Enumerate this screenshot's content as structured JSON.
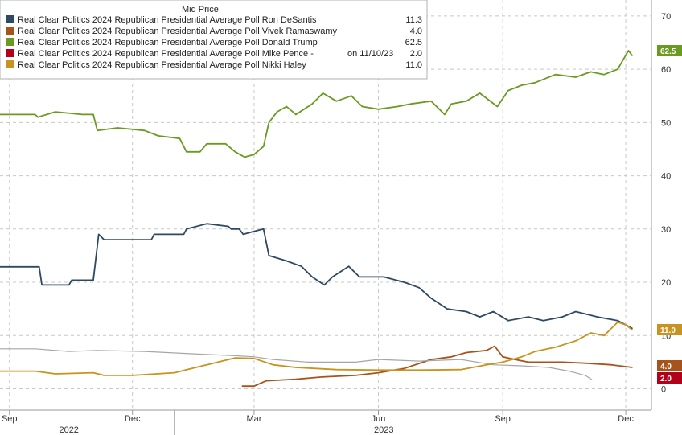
{
  "chart_data": {
    "type": "line",
    "legend_title": "Mid Price",
    "legend_placement": "top-left",
    "grid": true,
    "ylim": [
      -4,
      73
    ],
    "y_ticks": [
      "0",
      "10",
      "20",
      "30",
      "40",
      "50",
      "60",
      "70"
    ],
    "x_range": [
      "2022-08-25",
      "2023-12-20"
    ],
    "x_ticks": [
      {
        "date": "2022-09-01",
        "label": "Sep"
      },
      {
        "date": "2022-12-01",
        "label": "Dec"
      },
      {
        "date": "2023-03-01",
        "label": "Mar"
      },
      {
        "date": "2023-06-01",
        "label": "Jun"
      },
      {
        "date": "2023-09-01",
        "label": "Sep"
      },
      {
        "date": "2023-12-01",
        "label": "Dec"
      }
    ],
    "year_labels": [
      {
        "date": "2022-10-15",
        "label": "2022"
      },
      {
        "date": "2023-06-05",
        "label": "2023"
      }
    ],
    "series": [
      {
        "name": "Real Clear Politics 2024 Republican Presidential Average Poll Ron DeSantis",
        "last": "11.3",
        "color": "#2e4a63",
        "points": [
          [
            "2022-08-25",
            22.9
          ],
          [
            "2022-09-23",
            22.9
          ],
          [
            "2022-09-25",
            19.5
          ],
          [
            "2022-10-15",
            19.5
          ],
          [
            "2022-10-17",
            20.4
          ],
          [
            "2022-11-02",
            20.4
          ],
          [
            "2022-11-06",
            29
          ],
          [
            "2022-11-10",
            28
          ],
          [
            "2022-12-15",
            28
          ],
          [
            "2022-12-17",
            29
          ],
          [
            "2023-01-08",
            29
          ],
          [
            "2023-01-10",
            30
          ],
          [
            "2023-01-25",
            31
          ],
          [
            "2023-02-10",
            30.5
          ],
          [
            "2023-02-12",
            30
          ],
          [
            "2023-02-18",
            30
          ],
          [
            "2023-02-21",
            29
          ],
          [
            "2023-02-28",
            29.5
          ],
          [
            "2023-03-08",
            30
          ],
          [
            "2023-03-12",
            25
          ],
          [
            "2023-03-25",
            24
          ],
          [
            "2023-04-05",
            23
          ],
          [
            "2023-04-13",
            21
          ],
          [
            "2023-04-22",
            19.5
          ],
          [
            "2023-04-28",
            21
          ],
          [
            "2023-05-10",
            23
          ],
          [
            "2023-05-18",
            21
          ],
          [
            "2023-06-05",
            21
          ],
          [
            "2023-06-20",
            20
          ],
          [
            "2023-07-01",
            19
          ],
          [
            "2023-07-10",
            17
          ],
          [
            "2023-07-22",
            15
          ],
          [
            "2023-08-05",
            14.5
          ],
          [
            "2023-08-15",
            13.5
          ],
          [
            "2023-08-25",
            14.5
          ],
          [
            "2023-09-05",
            12.8
          ],
          [
            "2023-09-20",
            13.5
          ],
          [
            "2023-10-01",
            12.8
          ],
          [
            "2023-10-15",
            13.5
          ],
          [
            "2023-10-25",
            14.5
          ],
          [
            "2023-11-10",
            13.5
          ],
          [
            "2023-11-25",
            12.8
          ],
          [
            "2023-12-06",
            11.3
          ]
        ]
      },
      {
        "name": "Real Clear Politics 2024 Republican Presidential Average Poll Vivek Ramaswamy",
        "last": "4.0",
        "color": "#a7531c",
        "points": [
          [
            "2023-02-20",
            0.5
          ],
          [
            "2023-03-01",
            0.5
          ],
          [
            "2023-03-10",
            1.5
          ],
          [
            "2023-04-01",
            1.8
          ],
          [
            "2023-04-20",
            2.2
          ],
          [
            "2023-05-15",
            2.5
          ],
          [
            "2023-06-01",
            3
          ],
          [
            "2023-06-20",
            3.8
          ],
          [
            "2023-07-10",
            5.5
          ],
          [
            "2023-07-25",
            6
          ],
          [
            "2023-08-05",
            6.8
          ],
          [
            "2023-08-20",
            7.2
          ],
          [
            "2023-08-26",
            8
          ],
          [
            "2023-09-01",
            6
          ],
          [
            "2023-09-10",
            5.5
          ],
          [
            "2023-09-20",
            5
          ],
          [
            "2023-10-15",
            5
          ],
          [
            "2023-11-01",
            4.8
          ],
          [
            "2023-11-20",
            4.5
          ],
          [
            "2023-12-06",
            4
          ]
        ]
      },
      {
        "name": "Real Clear Politics 2024 Republican Presidential Average Poll Donald Trump",
        "last": "62.5",
        "color": "#6a9a1f",
        "points": [
          [
            "2022-08-25",
            51.5
          ],
          [
            "2022-09-20",
            51.5
          ],
          [
            "2022-09-22",
            51
          ],
          [
            "2022-10-05",
            52
          ],
          [
            "2022-10-25",
            51.5
          ],
          [
            "2022-11-02",
            51.5
          ],
          [
            "2022-11-05",
            48.5
          ],
          [
            "2022-11-20",
            49
          ],
          [
            "2022-12-10",
            48.5
          ],
          [
            "2022-12-20",
            47.5
          ],
          [
            "2023-01-05",
            47
          ],
          [
            "2023-01-10",
            44.5
          ],
          [
            "2023-01-20",
            44.5
          ],
          [
            "2023-01-25",
            46
          ],
          [
            "2023-02-08",
            46
          ],
          [
            "2023-02-15",
            44.5
          ],
          [
            "2023-02-22",
            43.5
          ],
          [
            "2023-03-01",
            44
          ],
          [
            "2023-03-08",
            45.5
          ],
          [
            "2023-03-12",
            50
          ],
          [
            "2023-03-18",
            52
          ],
          [
            "2023-03-25",
            53
          ],
          [
            "2023-04-01",
            51.5
          ],
          [
            "2023-04-13",
            53.5
          ],
          [
            "2023-04-21",
            55.5
          ],
          [
            "2023-05-01",
            54
          ],
          [
            "2023-05-12",
            55
          ],
          [
            "2023-05-20",
            53
          ],
          [
            "2023-06-01",
            52.5
          ],
          [
            "2023-06-15",
            53
          ],
          [
            "2023-06-25",
            53.5
          ],
          [
            "2023-07-10",
            54
          ],
          [
            "2023-07-20",
            51.5
          ],
          [
            "2023-07-25",
            53.5
          ],
          [
            "2023-08-05",
            54
          ],
          [
            "2023-08-15",
            55.5
          ],
          [
            "2023-08-28",
            53
          ],
          [
            "2023-09-05",
            56
          ],
          [
            "2023-09-15",
            57
          ],
          [
            "2023-09-25",
            57.5
          ],
          [
            "2023-10-10",
            59
          ],
          [
            "2023-10-25",
            58.5
          ],
          [
            "2023-11-05",
            59.5
          ],
          [
            "2023-11-15",
            59
          ],
          [
            "2023-11-25",
            60
          ],
          [
            "2023-12-03",
            63.5
          ],
          [
            "2023-12-06",
            62.5
          ]
        ]
      },
      {
        "name": "Real Clear Politics 2024 Republican Presidential Average Poll Mike Pence -",
        "name_suffix": "on 11/10/23",
        "last": "2.0",
        "color": "#b3001b",
        "points": [],
        "extra_line_color": "#a6a6a6",
        "extra_line_points": [
          [
            "2022-08-25",
            7.5
          ],
          [
            "2022-09-20",
            7.5
          ],
          [
            "2022-10-15",
            7
          ],
          [
            "2022-11-05",
            7.2
          ],
          [
            "2022-12-10",
            7
          ],
          [
            "2023-01-20",
            6.5
          ],
          [
            "2023-02-15",
            6.2
          ],
          [
            "2023-03-01",
            6
          ],
          [
            "2023-03-15",
            5.5
          ],
          [
            "2023-04-10",
            5
          ],
          [
            "2023-05-15",
            5
          ],
          [
            "2023-06-01",
            5.5
          ],
          [
            "2023-07-01",
            5.2
          ],
          [
            "2023-08-01",
            5.5
          ],
          [
            "2023-08-25",
            4.5
          ],
          [
            "2023-09-15",
            4.3
          ],
          [
            "2023-10-05",
            4
          ],
          [
            "2023-10-20",
            3.3
          ],
          [
            "2023-11-01",
            2.5
          ],
          [
            "2023-11-06",
            1.7
          ]
        ]
      },
      {
        "name": "Real Clear Politics 2024 Republican Presidential Average Poll Nikki Haley",
        "last": "11.0",
        "color": "#c8931f",
        "points": [
          [
            "2022-08-25",
            3.3
          ],
          [
            "2022-09-20",
            3.3
          ],
          [
            "2022-10-05",
            2.8
          ],
          [
            "2022-11-02",
            3
          ],
          [
            "2022-11-10",
            2.5
          ],
          [
            "2022-12-01",
            2.5
          ],
          [
            "2023-01-01",
            3
          ],
          [
            "2023-01-25",
            4.5
          ],
          [
            "2023-02-15",
            5.8
          ],
          [
            "2023-03-01",
            5.7
          ],
          [
            "2023-03-15",
            4.5
          ],
          [
            "2023-04-01",
            4
          ],
          [
            "2023-05-01",
            3.6
          ],
          [
            "2023-06-01",
            3.5
          ],
          [
            "2023-07-01",
            3.5
          ],
          [
            "2023-08-01",
            3.6
          ],
          [
            "2023-08-20",
            4.5
          ],
          [
            "2023-09-01",
            5
          ],
          [
            "2023-09-15",
            6
          ],
          [
            "2023-09-25",
            7
          ],
          [
            "2023-10-10",
            7.8
          ],
          [
            "2023-10-25",
            9
          ],
          [
            "2023-11-05",
            10.5
          ],
          [
            "2023-11-15",
            10
          ],
          [
            "2023-11-25",
            12.5
          ],
          [
            "2023-12-01",
            12
          ],
          [
            "2023-12-06",
            11
          ]
        ]
      }
    ]
  }
}
